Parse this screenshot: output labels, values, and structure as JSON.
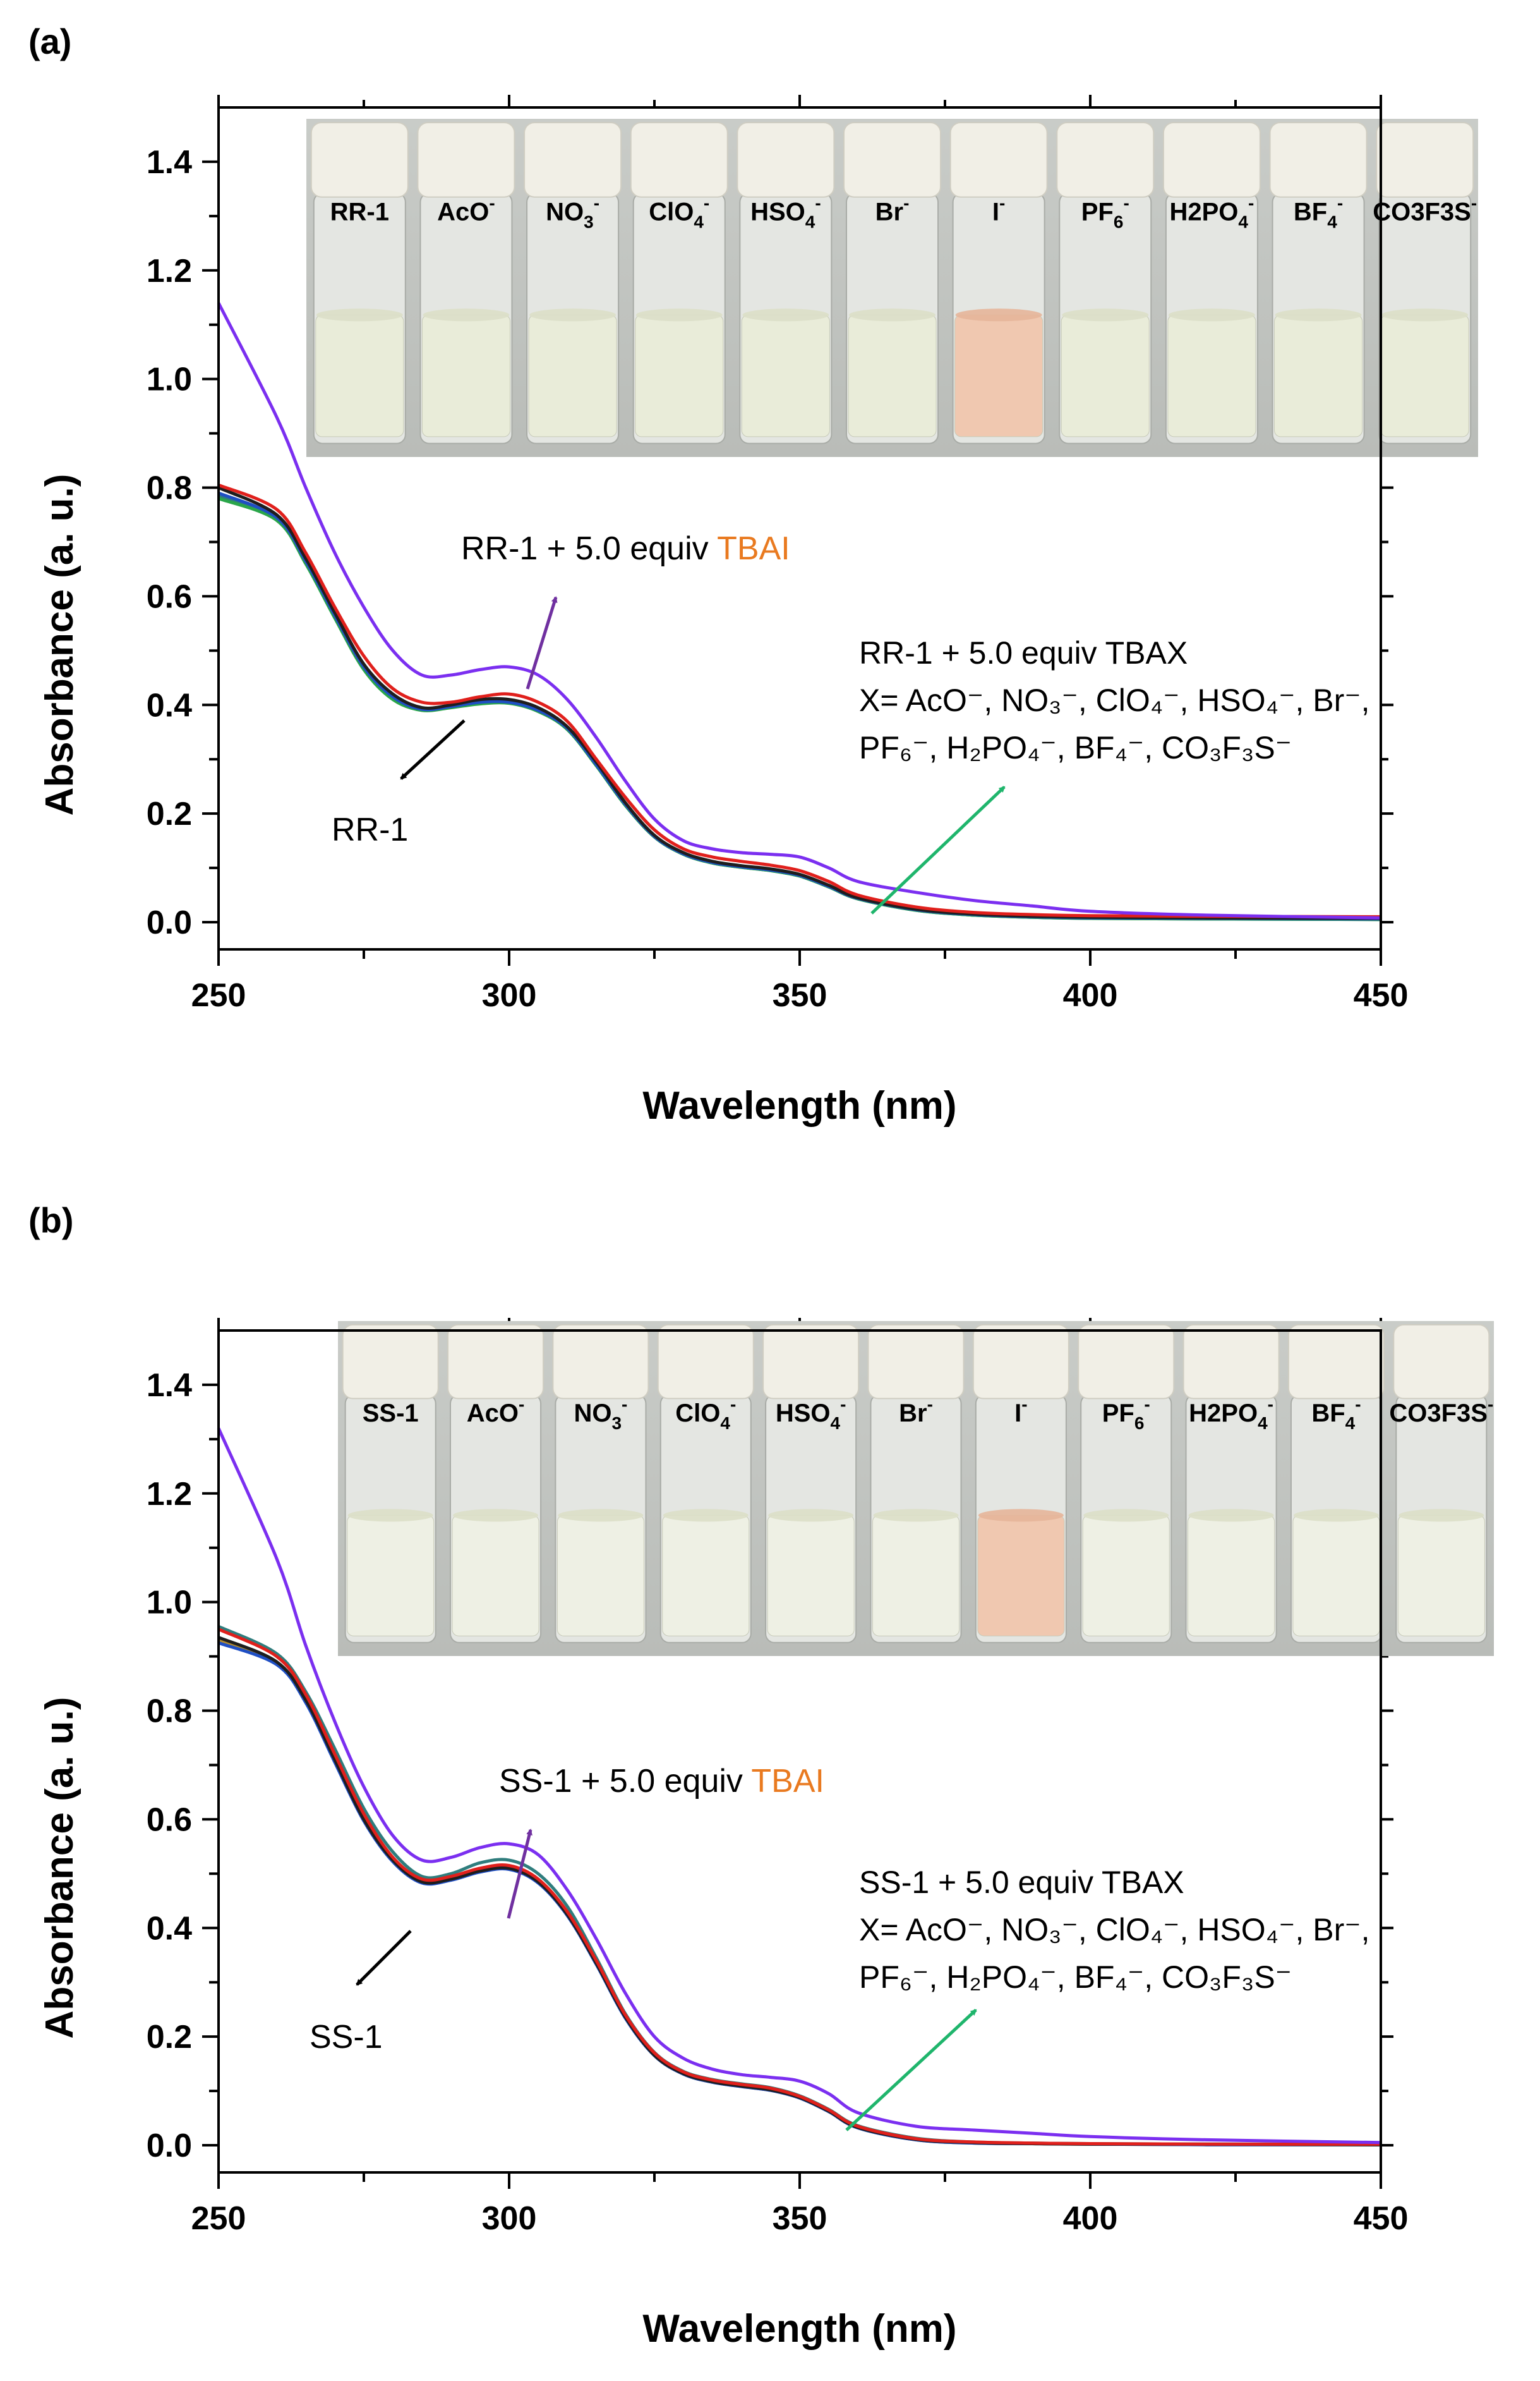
{
  "panels": [
    {
      "panel_label": "(a)",
      "photo": {
        "vial_labels": [
          {
            "base": "RR-1",
            "sub": "",
            "sup": ""
          },
          {
            "base": "AcO",
            "sub": "",
            "sup": "-"
          },
          {
            "base": "NO",
            "sub": "3",
            "sup": "-"
          },
          {
            "base": "ClO",
            "sub": "4",
            "sup": "-"
          },
          {
            "base": "HSO",
            "sub": "4",
            "sup": "-"
          },
          {
            "base": "Br",
            "sub": "",
            "sup": "-"
          },
          {
            "base": "I",
            "sub": "",
            "sup": "-"
          },
          {
            "base": "PF",
            "sub": "6",
            "sup": "-"
          },
          {
            "base": "H2PO",
            "sub": "4",
            "sup": "-"
          },
          {
            "base": "BF",
            "sub": "4",
            "sup": "-"
          },
          {
            "base": "CO3F3S",
            "sub": "",
            "sup": "-"
          }
        ],
        "highlight_color": "#f0c8b0",
        "solution_color": "#e9ecd9"
      },
      "annotations": {
        "tbai_prefix": "RR-1 + 5.0 equiv ",
        "tbai_word": "TBAI",
        "tbax_line1": "RR-1 + 5.0 equiv TBAX",
        "tbax_line2": "X= AcO⁻, NO₃⁻, ClO₄⁻, HSO₄⁻, Br⁻,",
        "tbax_line3": "PF₆⁻, H₂PO₄⁻, BF₄⁻, CO₃F₃S⁻",
        "free_label": "RR-1"
      }
    },
    {
      "panel_label": "(b)",
      "photo": {
        "vial_labels": [
          {
            "base": "SS-1",
            "sub": "",
            "sup": ""
          },
          {
            "base": "AcO",
            "sub": "",
            "sup": "-"
          },
          {
            "base": "NO",
            "sub": "3",
            "sup": "-"
          },
          {
            "base": "ClO",
            "sub": "4",
            "sup": "-"
          },
          {
            "base": "HSO",
            "sub": "4",
            "sup": "-"
          },
          {
            "base": "Br",
            "sub": "",
            "sup": "-"
          },
          {
            "base": "I",
            "sub": "",
            "sup": "-"
          },
          {
            "base": "PF",
            "sub": "6",
            "sup": "-"
          },
          {
            "base": "H2PO",
            "sub": "4",
            "sup": "-"
          },
          {
            "base": "BF",
            "sub": "4",
            "sup": "-"
          },
          {
            "base": "CO3F3S",
            "sub": "",
            "sup": "-"
          }
        ],
        "highlight_color": "#f0c8b0",
        "solution_color": "#eef0e4"
      },
      "annotations": {
        "tbai_prefix": "SS-1 + 5.0 equiv ",
        "tbai_word": "TBAI",
        "tbax_line1": "SS-1 + 5.0 equiv TBAX",
        "tbax_line2": "X= AcO⁻, NO₃⁻, ClO₄⁻, HSO₄⁻, Br⁻,",
        "tbax_line3": "PF₆⁻, H₂PO₄⁻, BF₄⁻, CO₃F₃S⁻",
        "free_label": "SS-1"
      }
    }
  ],
  "colors": {
    "tbai_word": "#e97a20",
    "tbai_arrow": "#7030a0",
    "tbax_arrow": "#1fb56c",
    "free_arrow": "#000000"
  },
  "chart_data": [
    {
      "type": "line",
      "xlabel": "Wavelength (nm)",
      "ylabel": "Absorbance (a. u.)",
      "xlim": [
        250,
        450
      ],
      "ylim": [
        -0.05,
        1.5
      ],
      "xticks": [
        250,
        300,
        350,
        400,
        450
      ],
      "yticks": [
        0.0,
        0.2,
        0.4,
        0.6,
        0.8,
        1.0,
        1.2,
        1.4
      ],
      "x": [
        250,
        260,
        265,
        270,
        275,
        280,
        285,
        290,
        295,
        300,
        305,
        310,
        315,
        320,
        325,
        330,
        335,
        340,
        345,
        350,
        355,
        360,
        370,
        380,
        390,
        400,
        420,
        450
      ],
      "series": [
        {
          "color": "#7b2ff0",
          "values": [
            1.14,
            0.93,
            0.8,
            0.68,
            0.58,
            0.5,
            0.455,
            0.455,
            0.465,
            0.47,
            0.455,
            0.41,
            0.34,
            0.26,
            0.19,
            0.15,
            0.135,
            0.128,
            0.125,
            0.12,
            0.1,
            0.075,
            0.055,
            0.04,
            0.03,
            0.02,
            0.013,
            0.008
          ]
        },
        {
          "color": "#e0201c",
          "values": [
            0.805,
            0.76,
            0.68,
            0.58,
            0.49,
            0.43,
            0.405,
            0.405,
            0.415,
            0.42,
            0.405,
            0.37,
            0.3,
            0.23,
            0.17,
            0.135,
            0.12,
            0.112,
            0.105,
            0.095,
            0.075,
            0.05,
            0.028,
            0.018,
            0.014,
            0.012,
            0.011,
            0.01
          ]
        },
        {
          "color": "#1e1e1e",
          "values": [
            0.8,
            0.75,
            0.67,
            0.57,
            0.475,
            0.42,
            0.395,
            0.4,
            0.41,
            0.41,
            0.395,
            0.36,
            0.295,
            0.22,
            0.16,
            0.128,
            0.112,
            0.104,
            0.098,
            0.088,
            0.068,
            0.045,
            0.024,
            0.015,
            0.011,
            0.009,
            0.008,
            0.007
          ]
        },
        {
          "color": "#1f4fc4",
          "values": [
            0.79,
            0.745,
            0.665,
            0.565,
            0.47,
            0.415,
            0.392,
            0.397,
            0.405,
            0.405,
            0.39,
            0.357,
            0.29,
            0.217,
            0.158,
            0.126,
            0.11,
            0.102,
            0.096,
            0.086,
            0.066,
            0.044,
            0.023,
            0.014,
            0.01,
            0.008,
            0.007,
            0.006
          ]
        },
        {
          "color": "#2aa64a",
          "values": [
            0.78,
            0.74,
            0.66,
            0.56,
            0.465,
            0.41,
            0.39,
            0.395,
            0.402,
            0.403,
            0.388,
            0.355,
            0.288,
            0.215,
            0.157,
            0.125,
            0.109,
            0.101,
            0.095,
            0.085,
            0.065,
            0.043,
            0.022,
            0.013,
            0.009,
            0.007,
            0.006,
            0.005
          ]
        },
        {
          "color": "#2f7d7d",
          "values": [
            0.785,
            0.742,
            0.662,
            0.562,
            0.468,
            0.412,
            0.391,
            0.396,
            0.404,
            0.404,
            0.389,
            0.356,
            0.289,
            0.216,
            0.157,
            0.125,
            0.109,
            0.101,
            0.095,
            0.085,
            0.065,
            0.043,
            0.022,
            0.013,
            0.009,
            0.007,
            0.006,
            0.005
          ]
        }
      ]
    },
    {
      "type": "line",
      "xlabel": "Wavelength (nm)",
      "ylabel": "Absorbance (a. u.)",
      "xlim": [
        250,
        450
      ],
      "ylim": [
        -0.05,
        1.5
      ],
      "xticks": [
        250,
        300,
        350,
        400,
        450
      ],
      "yticks": [
        0.0,
        0.2,
        0.4,
        0.6,
        0.8,
        1.0,
        1.2,
        1.4
      ],
      "x": [
        250,
        260,
        265,
        270,
        275,
        280,
        285,
        290,
        295,
        300,
        305,
        310,
        315,
        320,
        325,
        330,
        335,
        340,
        345,
        350,
        355,
        360,
        370,
        380,
        390,
        400,
        420,
        450
      ],
      "series": [
        {
          "color": "#7b2ff0",
          "values": [
            1.32,
            1.08,
            0.92,
            0.78,
            0.66,
            0.57,
            0.525,
            0.53,
            0.548,
            0.555,
            0.535,
            0.47,
            0.38,
            0.28,
            0.2,
            0.16,
            0.14,
            0.13,
            0.125,
            0.118,
            0.095,
            0.06,
            0.035,
            0.028,
            0.022,
            0.016,
            0.01,
            0.005
          ]
        },
        {
          "color": "#e0201c",
          "values": [
            0.95,
            0.9,
            0.83,
            0.72,
            0.61,
            0.53,
            0.49,
            0.495,
            0.51,
            0.515,
            0.49,
            0.43,
            0.34,
            0.24,
            0.17,
            0.135,
            0.12,
            0.112,
            0.105,
            0.09,
            0.065,
            0.035,
            0.012,
            0.006,
            0.004,
            0.003,
            0.002,
            0.002
          ]
        },
        {
          "color": "#1e1e1e",
          "values": [
            0.935,
            0.89,
            0.82,
            0.71,
            0.6,
            0.525,
            0.485,
            0.49,
            0.505,
            0.51,
            0.485,
            0.425,
            0.335,
            0.236,
            0.166,
            0.132,
            0.117,
            0.109,
            0.102,
            0.088,
            0.063,
            0.033,
            0.011,
            0.005,
            0.003,
            0.002,
            0.002,
            0.001
          ]
        },
        {
          "color": "#1f4fc4",
          "values": [
            0.925,
            0.885,
            0.815,
            0.705,
            0.597,
            0.522,
            0.483,
            0.488,
            0.503,
            0.508,
            0.483,
            0.423,
            0.333,
            0.234,
            0.165,
            0.131,
            0.116,
            0.108,
            0.101,
            0.087,
            0.062,
            0.032,
            0.01,
            0.004,
            0.003,
            0.002,
            0.001,
            0.001
          ]
        },
        {
          "color": "#2f7d7d",
          "values": [
            0.955,
            0.905,
            0.835,
            0.73,
            0.62,
            0.54,
            0.495,
            0.5,
            0.52,
            0.525,
            0.5,
            0.44,
            0.345,
            0.242,
            0.171,
            0.136,
            0.121,
            0.113,
            0.106,
            0.091,
            0.066,
            0.036,
            0.013,
            0.006,
            0.004,
            0.003,
            0.002,
            0.002
          ]
        },
        {
          "color": "#b08a30",
          "values": [
            0.93,
            0.887,
            0.818,
            0.708,
            0.6,
            0.524,
            0.484,
            0.489,
            0.504,
            0.509,
            0.484,
            0.424,
            0.334,
            0.235,
            0.165,
            0.131,
            0.116,
            0.108,
            0.101,
            0.087,
            0.062,
            0.032,
            0.01,
            0.004,
            0.003,
            0.002,
            0.001,
            0.001
          ]
        }
      ]
    }
  ]
}
